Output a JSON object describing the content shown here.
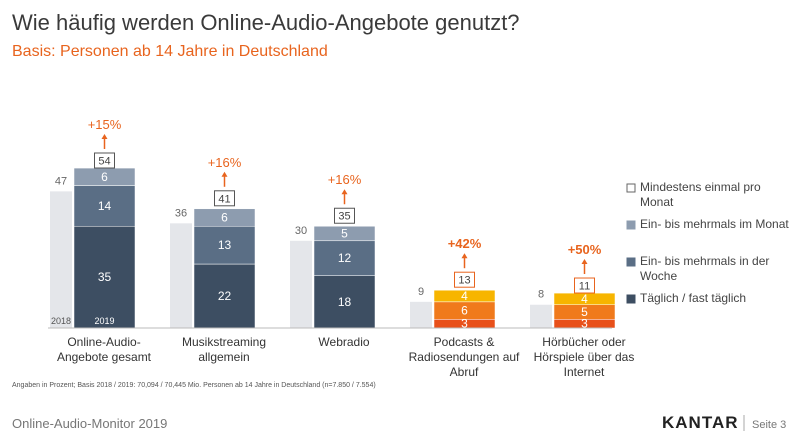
{
  "chart_data": {
    "type": "bar",
    "title": "Wie häufig werden Online-Audio-Angebote genutzt?",
    "subtitle": "Basis: Personen ab 14 Jahre in Deutschland",
    "categories": [
      [
        "Online-Audio-",
        "Angebote gesamt"
      ],
      [
        "Musikstreaming",
        "allgemein"
      ],
      [
        "Webradio"
      ],
      [
        "Podcasts &",
        "Radiosendungen auf",
        "Abruf"
      ],
      [
        "Hörbücher oder",
        "Hörspiele über das",
        "Internet"
      ]
    ],
    "years": [
      "2018",
      "2019"
    ],
    "total_name": "Mindestens einmal pro Monat",
    "total_2018_color": "#e4e6ea",
    "totals_2018": [
      47,
      36,
      30,
      9,
      8
    ],
    "totals_2019": [
      54,
      41,
      35,
      13,
      11
    ],
    "growth": [
      15,
      16,
      16,
      42,
      50
    ],
    "growth_labels": [
      "+15%",
      "+16%",
      "+16%",
      "+42%",
      "+50%"
    ],
    "series": [
      {
        "name": "Täglich / fast täglich",
        "color": "#3d4e62",
        "colors": [
          "#3d4e62",
          "#3d4e62",
          "#3d4e62",
          "#e8501a",
          "#e8501a"
        ],
        "values": [
          35,
          22,
          18,
          3,
          3
        ]
      },
      {
        "name": "Ein- bis mehrmals in der Woche",
        "color": "#5a6e85",
        "colors": [
          "#5a6e85",
          "#5a6e85",
          "#5a6e85",
          "#f07a1c",
          "#f07a1c"
        ],
        "values": [
          14,
          13,
          12,
          6,
          5
        ]
      },
      {
        "name": "Ein- bis mehrmals im Monat",
        "color": "#8d9caf",
        "colors": [
          "#8d9caf",
          "#8d9caf",
          "#8d9caf",
          "#f7b500",
          "#f7b500"
        ],
        "values": [
          6,
          6,
          5,
          4,
          4
        ]
      }
    ],
    "footnote": "Angaben in Prozent; Basis 2018 / 2019: 70,094 / 70,445 Mio. Personen ab 14 Jahre in Deutschland (n=7.850 / 7.554)"
  },
  "footer": {
    "left": "Online-Audio-Monitor 2019",
    "brand": "KANTAR",
    "page": "Seite 3"
  }
}
